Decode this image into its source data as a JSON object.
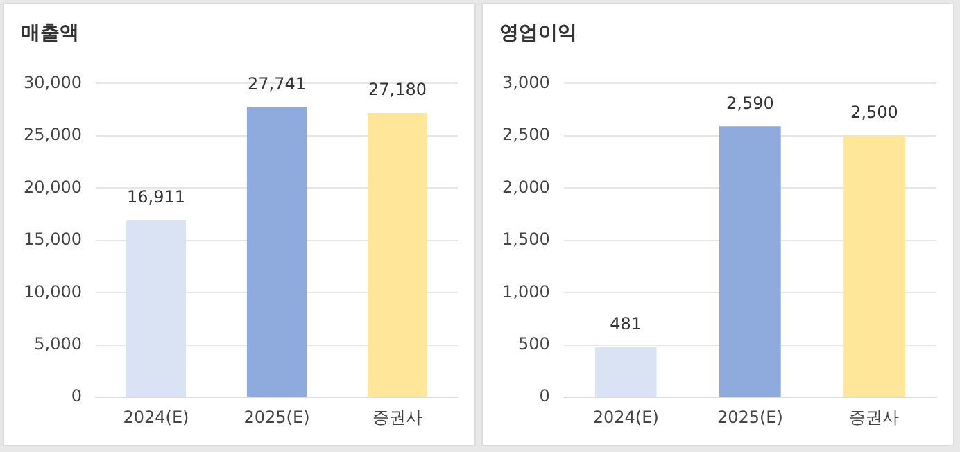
{
  "chart_data": [
    {
      "type": "bar",
      "title": "매출액",
      "categories": [
        "2024(E)",
        "2025(E)",
        "증권사"
      ],
      "values": [
        16911,
        27741,
        27180
      ],
      "value_labels": [
        "16,911",
        "27,741",
        "27,180"
      ],
      "colors": [
        "#dae3f3",
        "#8faadc",
        "#ffe699"
      ],
      "ylim": [
        0,
        30000
      ],
      "yticks": [
        {
          "value": 0,
          "label": "0"
        },
        {
          "value": 5000,
          "label": "5,000"
        },
        {
          "value": 10000,
          "label": "10,000"
        },
        {
          "value": 15000,
          "label": "15,000"
        },
        {
          "value": 20000,
          "label": "20,000"
        },
        {
          "value": 25000,
          "label": "25,000"
        },
        {
          "value": 30000,
          "label": "30,000"
        }
      ],
      "grid": "y",
      "legend": false
    },
    {
      "type": "bar",
      "title": "영업이익",
      "categories": [
        "2024(E)",
        "2025(E)",
        "증권사"
      ],
      "values": [
        481,
        2590,
        2500
      ],
      "value_labels": [
        "481",
        "2,590",
        "2,500"
      ],
      "colors": [
        "#dae3f3",
        "#8faadc",
        "#ffe699"
      ],
      "ylim": [
        0,
        3000
      ],
      "yticks": [
        {
          "value": 0,
          "label": "0"
        },
        {
          "value": 500,
          "label": "500"
        },
        {
          "value": 1000,
          "label": "1,000"
        },
        {
          "value": 1500,
          "label": "1,500"
        },
        {
          "value": 2000,
          "label": "2,000"
        },
        {
          "value": 2500,
          "label": "2,500"
        },
        {
          "value": 3000,
          "label": "3,000"
        }
      ],
      "grid": "y",
      "legend": false
    }
  ]
}
